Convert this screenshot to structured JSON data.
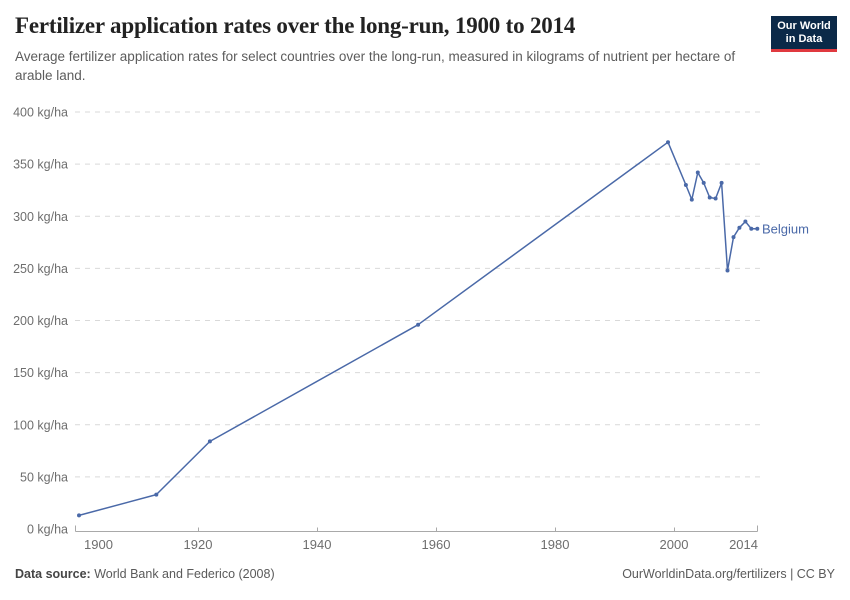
{
  "header": {
    "title": "Fertilizer application rates over the long-run, 1900 to 2014",
    "subtitle": "Average fertilizer application rates for select countries over the long-run, measured in kilograms of nutrient per hectare of arable land.",
    "logo": {
      "line1": "Our World",
      "line2": "in Data",
      "bg_color": "#0b2948",
      "stripe_color": "#e0393f"
    }
  },
  "chart_data": {
    "type": "line",
    "title": "Fertilizer application rates over the long-run, 1900 to 2014",
    "unit": "kg/ha",
    "xlabel": "",
    "ylabel": "kg/ha",
    "xlim": [
      1900,
      2014
    ],
    "ylim": [
      0,
      400
    ],
    "x_ticks": [
      1900,
      1920,
      1940,
      1960,
      1980,
      2000,
      2014
    ],
    "y_ticks": [
      0,
      50,
      100,
      150,
      200,
      250,
      300,
      350,
      400
    ],
    "grid": "dashed horizontal",
    "legend_position": "end-of-line label",
    "series": [
      {
        "name": "Belgium",
        "color": "#4a69a8",
        "points": [
          [
            1900,
            13
          ],
          [
            1913,
            33
          ],
          [
            1922,
            84
          ],
          [
            1957,
            196
          ],
          [
            1999,
            371
          ],
          [
            2002,
            330
          ],
          [
            2003,
            316
          ],
          [
            2004,
            342
          ],
          [
            2005,
            332
          ],
          [
            2006,
            318
          ],
          [
            2007,
            317
          ],
          [
            2008,
            332
          ],
          [
            2009,
            248
          ],
          [
            2010,
            280
          ],
          [
            2011,
            289
          ],
          [
            2012,
            295
          ],
          [
            2013,
            288
          ],
          [
            2014,
            288
          ]
        ]
      }
    ]
  },
  "footer": {
    "source_label": "Data source:",
    "source_value": " World Bank and Federico (2008)",
    "link": "OurWorldinData.org/fertilizers | CC BY"
  }
}
